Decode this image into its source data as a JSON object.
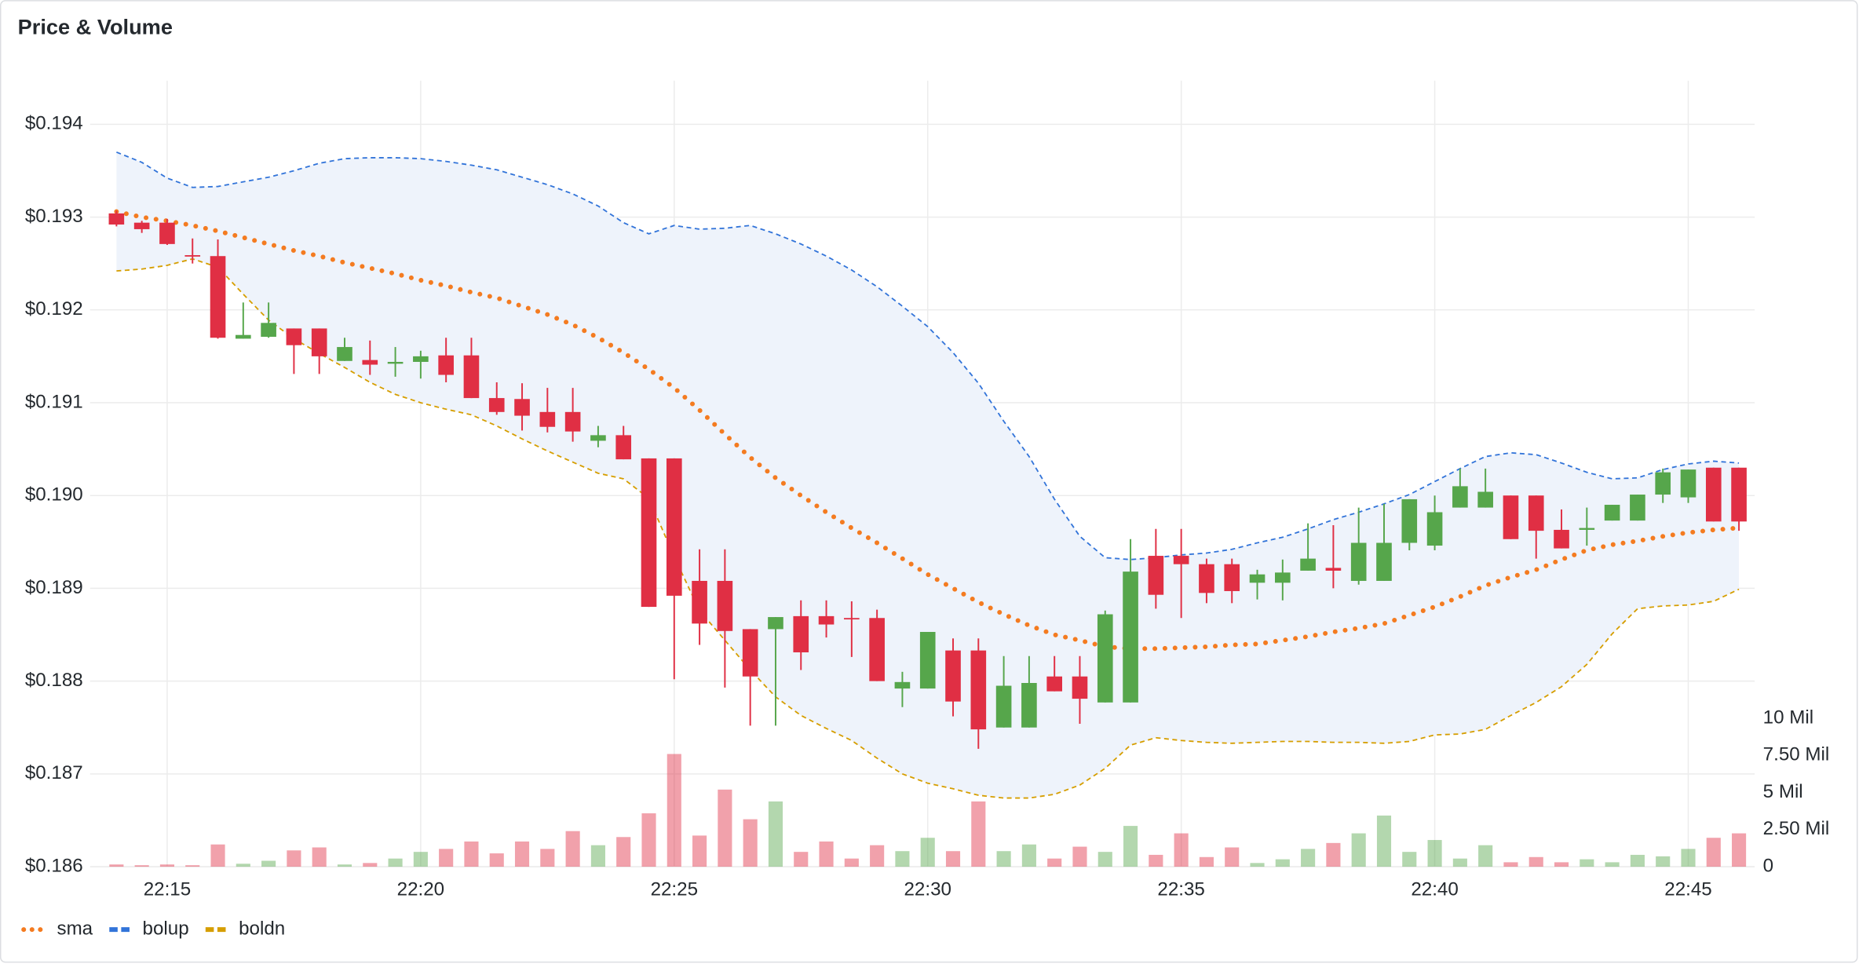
{
  "chart_data": {
    "type": "candlestick",
    "title": "Price & Volume",
    "x": [
      14,
      14.5,
      15,
      15.5,
      16,
      16.5,
      17,
      17.5,
      18,
      18.5,
      19,
      19.5,
      20,
      20.5,
      21,
      21.5,
      22,
      22.5,
      23,
      23.5,
      24,
      24.5,
      25,
      25.5,
      26,
      26.5,
      27,
      27.5,
      28,
      28.5,
      29,
      29.5,
      30,
      30.5,
      31,
      31.5,
      32,
      32.5,
      33,
      33.5,
      34,
      34.5,
      35,
      35.5,
      36,
      36.5,
      37,
      37.5,
      38,
      38.5,
      39,
      39.5,
      40,
      40.5,
      41,
      41.5,
      42,
      42.5,
      43,
      43.5,
      44,
      44.5,
      45,
      45.5,
      46
    ],
    "xlim": [
      13.48,
      46.31
    ],
    "xticks": [
      {
        "value": 15,
        "label": "22:15"
      },
      {
        "value": 20,
        "label": "22:20"
      },
      {
        "value": 25,
        "label": "22:25"
      },
      {
        "value": 30,
        "label": "22:30"
      },
      {
        "value": 35,
        "label": "22:35"
      },
      {
        "value": 40,
        "label": "22:40"
      },
      {
        "value": 45,
        "label": "22:45"
      }
    ],
    "ylim": [
      0.186,
      0.19447
    ],
    "yticks": [
      {
        "value": 0.186,
        "label": "$0.186"
      },
      {
        "value": 0.187,
        "label": "$0.187"
      },
      {
        "value": 0.188,
        "label": "$0.188"
      },
      {
        "value": 0.189,
        "label": "$0.189"
      },
      {
        "value": 0.19,
        "label": "$0.190"
      },
      {
        "value": 0.191,
        "label": "$0.191"
      },
      {
        "value": 0.192,
        "label": "$0.192"
      },
      {
        "value": 0.193,
        "label": "$0.193"
      },
      {
        "value": 0.194,
        "label": "$0.194"
      }
    ],
    "y2lim": [
      0,
      53000000
    ],
    "y2ticks": [
      0,
      {
        "value": 2500000,
        "label": "2.50 Mil"
      },
      {
        "value": 5000000,
        "label": "5 Mil"
      },
      {
        "value": 7500000,
        "label": "7.50 Mil"
      },
      {
        "value": 10000000,
        "label": "10 Mil"
      }
    ],
    "grid": true,
    "up_color": "#56a64b",
    "down_color": "#e02f44",
    "open": [
      0.19304,
      0.19294,
      0.19294,
      0.19259,
      0.19258,
      0.19169,
      0.19171,
      0.1918,
      0.1918,
      0.19145,
      0.19146,
      0.19142,
      0.19144,
      0.19151,
      0.19151,
      0.19105,
      0.19104,
      0.1909,
      0.1909,
      0.19059,
      0.19065,
      0.1904,
      0.1904,
      0.18908,
      0.18908,
      0.18856,
      0.18856,
      0.1887,
      0.1887,
      0.18868,
      0.18868,
      0.18792,
      0.18792,
      0.18833,
      0.18833,
      0.1875,
      0.1875,
      0.18805,
      0.18805,
      0.18777,
      0.18777,
      0.18935,
      0.18935,
      0.18926,
      0.18926,
      0.18906,
      0.18906,
      0.18919,
      0.18922,
      0.18908,
      0.18908,
      0.18949,
      0.18946,
      0.18987,
      0.18987,
      0.19,
      0.19,
      0.18963,
      0.18963,
      0.18973,
      0.18973,
      0.19001,
      0.18998,
      0.1903,
      0.1903
    ],
    "high": [
      0.19307,
      0.19296,
      0.19298,
      0.19277,
      0.19276,
      0.19208,
      0.19208,
      0.1918,
      0.1918,
      0.1917,
      0.19167,
      0.1916,
      0.19156,
      0.1917,
      0.1917,
      0.19122,
      0.19121,
      0.19116,
      0.19116,
      0.19075,
      0.19075,
      0.1904,
      0.1904,
      0.18942,
      0.18942,
      0.18856,
      0.18869,
      0.18887,
      0.18887,
      0.18886,
      0.18877,
      0.1881,
      0.18853,
      0.18846,
      0.18846,
      0.18827,
      0.18827,
      0.18827,
      0.18827,
      0.18876,
      0.18953,
      0.18964,
      0.18964,
      0.18932,
      0.18932,
      0.1892,
      0.18931,
      0.1897,
      0.18968,
      0.18987,
      0.18991,
      0.18996,
      0.19,
      0.19029,
      0.19029,
      0.19,
      0.19,
      0.18985,
      0.18987,
      0.1899,
      0.19001,
      0.19029,
      0.19028,
      0.1903,
      0.1903
    ],
    "low": [
      0.1929,
      0.19283,
      0.1927,
      0.1925,
      0.19169,
      0.19169,
      0.1917,
      0.19131,
      0.19131,
      0.19145,
      0.1913,
      0.19128,
      0.19126,
      0.19122,
      0.19105,
      0.19087,
      0.1907,
      0.19068,
      0.19058,
      0.19052,
      0.19039,
      0.1888,
      0.18802,
      0.18839,
      0.18793,
      0.18752,
      0.18752,
      0.18812,
      0.18847,
      0.18826,
      0.188,
      0.18772,
      0.18792,
      0.18762,
      0.18727,
      0.1875,
      0.1875,
      0.18789,
      0.18754,
      0.18777,
      0.18777,
      0.18878,
      0.18868,
      0.18884,
      0.18884,
      0.18888,
      0.18887,
      0.18919,
      0.189,
      0.18904,
      0.18908,
      0.18941,
      0.18941,
      0.18987,
      0.18987,
      0.18953,
      0.18932,
      0.18943,
      0.18946,
      0.18973,
      0.18973,
      0.18992,
      0.18992,
      0.18972,
      0.18962
    ],
    "close": [
      0.19292,
      0.19287,
      0.19271,
      0.19258,
      0.1917,
      0.19173,
      0.19186,
      0.19162,
      0.1915,
      0.1916,
      0.19141,
      0.19144,
      0.1915,
      0.1913,
      0.19105,
      0.1909,
      0.19086,
      0.19074,
      0.19069,
      0.19065,
      0.19039,
      0.1888,
      0.18892,
      0.18862,
      0.18854,
      0.18805,
      0.18869,
      0.18831,
      0.18861,
      0.18867,
      0.188,
      0.18799,
      0.18853,
      0.18778,
      0.18748,
      0.18795,
      0.18798,
      0.18789,
      0.18781,
      0.18872,
      0.18918,
      0.18893,
      0.18926,
      0.18895,
      0.18897,
      0.18915,
      0.18917,
      0.18932,
      0.18919,
      0.18949,
      0.18949,
      0.18996,
      0.18982,
      0.1901,
      0.19004,
      0.18953,
      0.18962,
      0.18943,
      0.18965,
      0.1899,
      0.19001,
      0.19025,
      0.19028,
      0.18972,
      0.18972
    ],
    "volume": [
      150000,
      100000,
      150000,
      100000,
      1500000,
      200000,
      400000,
      1100000,
      1300000,
      150000,
      250000,
      550000,
      1000000,
      1200000,
      1700000,
      900000,
      1700000,
      1200000,
      2400000,
      1450000,
      2000000,
      3600000,
      7600000,
      2100000,
      5200000,
      3200000,
      4400000,
      1000000,
      1700000,
      550000,
      1450000,
      1050000,
      1950000,
      1050000,
      4400000,
      1050000,
      1500000,
      550000,
      1350000,
      1000000,
      2750000,
      800000,
      2250000,
      650000,
      1300000,
      250000,
      500000,
      1200000,
      1600000,
      2250000,
      3450000,
      1000000,
      1800000,
      550000,
      1450000,
      300000,
      650000,
      300000,
      500000,
      300000,
      800000,
      700000,
      1200000,
      1950000,
      2250000
    ],
    "series": [
      {
        "name": "sma",
        "color": "#f47b20",
        "style": "dotted",
        "values": [
          0.19306,
          0.193,
          0.19296,
          0.19291,
          0.19285,
          0.19278,
          0.19271,
          0.19264,
          0.19258,
          0.19251,
          0.19245,
          0.19239,
          0.19232,
          0.19226,
          0.19219,
          0.19213,
          0.19204,
          0.19195,
          0.19184,
          0.1917,
          0.19154,
          0.19136,
          0.19116,
          0.19092,
          0.19066,
          0.19041,
          0.19019,
          0.19,
          0.18982,
          0.18965,
          0.18949,
          0.18932,
          0.18915,
          0.189,
          0.18885,
          0.18872,
          0.1886,
          0.1885,
          0.18844,
          0.18837,
          0.18835,
          0.18835,
          0.18836,
          0.18837,
          0.18839,
          0.1884,
          0.18844,
          0.18848,
          0.18853,
          0.18857,
          0.18862,
          0.18871,
          0.1888,
          0.18891,
          0.18903,
          0.18912,
          0.1892,
          0.18931,
          0.18941,
          0.18947,
          0.18951,
          0.18956,
          0.1896,
          0.18963,
          0.18965
        ]
      },
      {
        "name": "bolup",
        "color": "#3274d9",
        "style": "dashed",
        "values": [
          0.1937,
          0.19359,
          0.19342,
          0.19332,
          0.19333,
          0.19338,
          0.19343,
          0.1935,
          0.19358,
          0.19363,
          0.19364,
          0.19364,
          0.19363,
          0.1936,
          0.19356,
          0.19351,
          0.19343,
          0.19335,
          0.19325,
          0.19312,
          0.19294,
          0.19282,
          0.19291,
          0.19287,
          0.19288,
          0.19291,
          0.19282,
          0.19271,
          0.19258,
          0.19243,
          0.19225,
          0.19204,
          0.19182,
          0.19154,
          0.19121,
          0.1908,
          0.19042,
          0.18996,
          0.18956,
          0.18933,
          0.18931,
          0.18933,
          0.18936,
          0.18938,
          0.18942,
          0.18949,
          0.18955,
          0.18964,
          0.18974,
          0.18982,
          0.18991,
          0.19001,
          0.19015,
          0.19029,
          0.19042,
          0.19046,
          0.19044,
          0.19035,
          0.19025,
          0.19018,
          0.19019,
          0.19028,
          0.19034,
          0.19037,
          0.19035
        ]
      },
      {
        "name": "boldn",
        "color": "#d69e00",
        "style": "dashed",
        "values": [
          0.19242,
          0.19244,
          0.19248,
          0.19255,
          0.19246,
          0.19217,
          0.19189,
          0.19169,
          0.19153,
          0.19138,
          0.19122,
          0.19109,
          0.191,
          0.19093,
          0.19087,
          0.19075,
          0.19061,
          0.19048,
          0.19036,
          0.19024,
          0.19018,
          0.18997,
          0.18934,
          0.18876,
          0.18844,
          0.18812,
          0.18783,
          0.18763,
          0.18749,
          0.18736,
          0.18717,
          0.187,
          0.1869,
          0.18684,
          0.18677,
          0.18674,
          0.18674,
          0.18678,
          0.18688,
          0.18706,
          0.18731,
          0.18739,
          0.18736,
          0.18734,
          0.18733,
          0.18734,
          0.18735,
          0.18735,
          0.18734,
          0.18734,
          0.18733,
          0.18735,
          0.18742,
          0.18743,
          0.18748,
          0.18763,
          0.18777,
          0.18794,
          0.18818,
          0.18851,
          0.18878,
          0.18881,
          0.18882,
          0.18886,
          0.18899
        ]
      }
    ]
  }
}
